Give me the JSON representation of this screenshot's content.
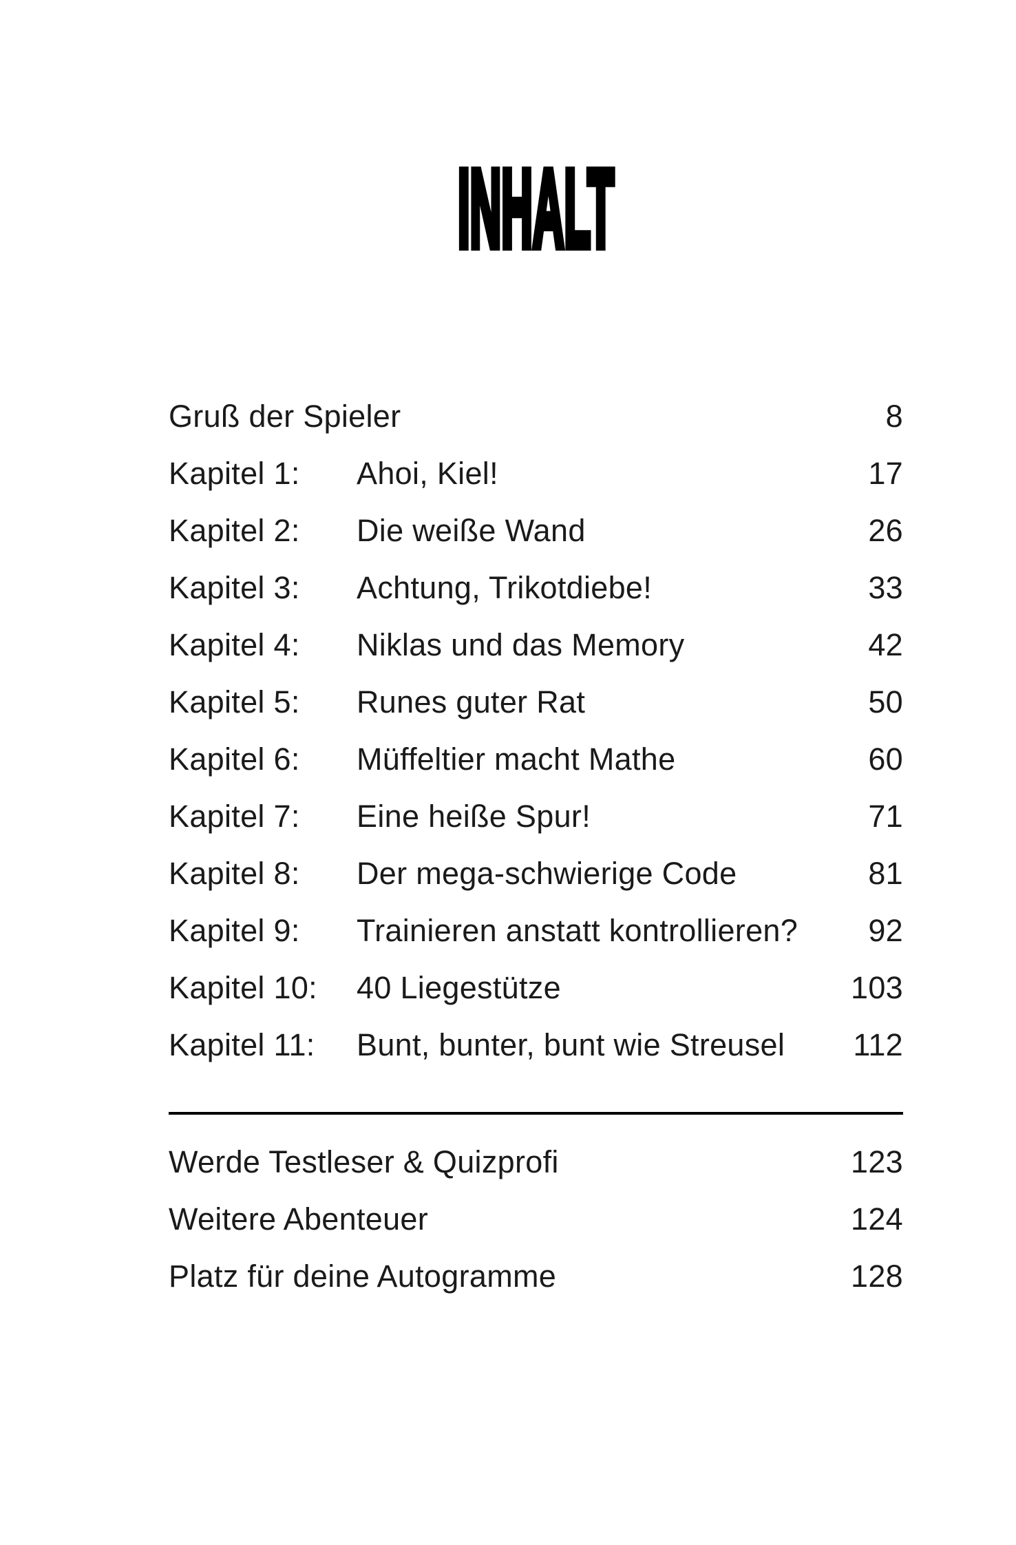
{
  "page": {
    "title": "INHALT"
  },
  "colors": {
    "background": "#ffffff",
    "body_text": "#1a1a1a",
    "title_text": "#000000",
    "divider": "#000000"
  },
  "toc": {
    "rows": [
      {
        "label": "Gruß der Spieler",
        "title": "",
        "page": "8"
      },
      {
        "label": "Kapitel 1:",
        "title": "Ahoi, Kiel!",
        "page": "17"
      },
      {
        "label": "Kapitel 2:",
        "title": "Die weiße Wand",
        "page": "26"
      },
      {
        "label": "Kapitel 3:",
        "title": "Achtung, Trikotdiebe!",
        "page": "33"
      },
      {
        "label": "Kapitel 4:",
        "title": "Niklas und das Memory",
        "page": "42"
      },
      {
        "label": "Kapitel 5:",
        "title": "Runes guter Rat",
        "page": "50"
      },
      {
        "label": "Kapitel 6:",
        "title": "Müffeltier macht Mathe",
        "page": "60"
      },
      {
        "label": "Kapitel 7:",
        "title": "Eine heiße Spur!",
        "page": "71"
      },
      {
        "label": "Kapitel 8:",
        "title": "Der mega-schwierige Code",
        "page": "81"
      },
      {
        "label": "Kapitel 9:",
        "title": "Trainieren anstatt kontrollieren?",
        "page": "92"
      },
      {
        "label": "Kapitel 10:",
        "title": "40 Liegestütze",
        "page": "103"
      },
      {
        "label": "Kapitel 11:",
        "title": "Bunt, bunter, bunt wie Streusel",
        "page": "112"
      }
    ],
    "extras": [
      {
        "label": "Werde Testleser & Quizprofi",
        "page": "123"
      },
      {
        "label": "Weitere Abenteuer",
        "page": "124"
      },
      {
        "label": "Platz für deine Autogramme",
        "page": "128"
      }
    ]
  }
}
